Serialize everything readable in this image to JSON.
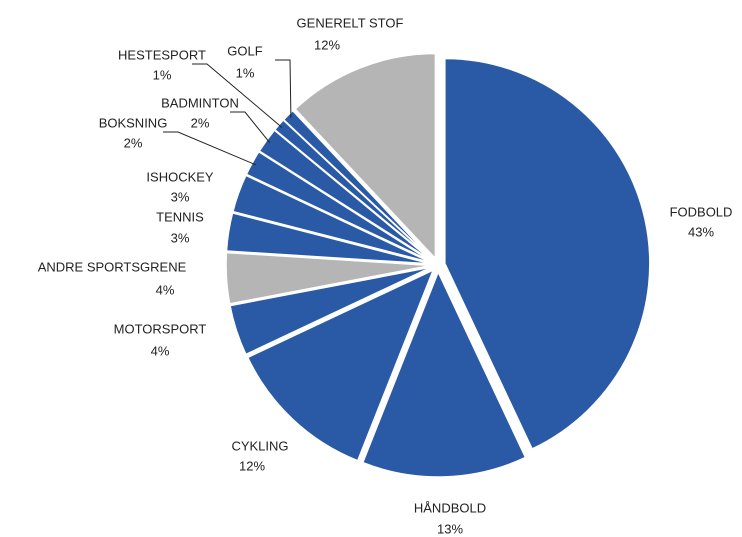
{
  "chart_data": {
    "type": "pie",
    "categories": [
      "FODBOLD",
      "HÅNDBOLD",
      "CYKLING",
      "MOTORSPORT",
      "ANDRE SPORTSGRENE",
      "TENNIS",
      "ISHOCKEY",
      "BOKSNING",
      "BADMINTON",
      "HESTESPORT",
      "GOLF",
      "GENERELT STOF"
    ],
    "values": [
      43,
      13,
      12,
      4,
      4,
      3,
      3,
      2,
      2,
      1,
      1,
      12
    ],
    "value_labels": [
      "43%",
      "13%",
      "12%",
      "4%",
      "4%",
      "3%",
      "3%",
      "2%",
      "2%",
      "1%",
      "1%",
      "12%"
    ],
    "colors": [
      "#2a5aa6",
      "#2a5aa6",
      "#2a5aa6",
      "#2a5aa6",
      "#b5b5b5",
      "#2a5aa6",
      "#2a5aa6",
      "#2a5aa6",
      "#2a5aa6",
      "#2a5aa6",
      "#2a5aa6",
      "#b5b5b5"
    ]
  }
}
